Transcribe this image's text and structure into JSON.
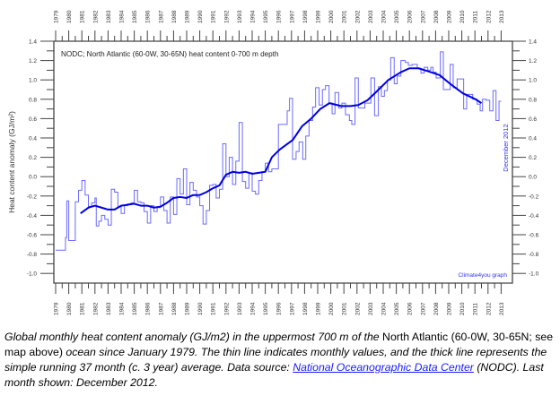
{
  "chart_data": {
    "type": "line",
    "title": "NODC; North Atlantic (60-0W, 30-65N) heat content 0-700 m depth",
    "ylabel": "Heat content anomaly (GJ/m²)",
    "xlabel": "",
    "xlim": [
      1979,
      2013.3
    ],
    "ylim": [
      -1.1,
      1.4
    ],
    "yticks": [
      1.4,
      1.2,
      1.0,
      0.8,
      0.6,
      0.4,
      0.2,
      0.0,
      -0.2,
      -0.4,
      -0.6,
      -0.8,
      -1.0
    ],
    "ytick_labels": [
      "1.4",
      "1.2",
      "1.0",
      "0.8",
      "0.6",
      "0.4",
      "0.2",
      "0.0",
      "-0.2",
      "-0.4",
      "-0.6",
      "-0.8",
      "-1.0"
    ],
    "xticks": [
      "1979",
      "1980",
      "1981",
      "1982",
      "1983",
      "1984",
      "1985",
      "1986",
      "1987",
      "1988",
      "1989",
      "1990",
      "1991",
      "1992",
      "1993",
      "1994",
      "1995",
      "1996",
      "1997",
      "1998",
      "1999",
      "2000",
      "2001",
      "2002",
      "2003",
      "2004",
      "2005",
      "2006",
      "2007",
      "2008",
      "2009",
      "2010",
      "2011",
      "2012",
      "2013"
    ],
    "last_month_label": "December 2012",
    "credit": "Climate4you graph",
    "colors": {
      "monthly": "#6a6aff",
      "running_mean": "#0000e0",
      "axis": "#444444",
      "label": "#3333ff"
    },
    "series": [
      {
        "name": "Monthly values",
        "style": "thin-step",
        "x": [
          1979.0,
          1979.75,
          1979.85,
          1980.0,
          1980.5,
          1980.75,
          1981.0,
          1981.25,
          1981.5,
          1981.75,
          1982.0,
          1982.1,
          1982.3,
          1982.5,
          1982.75,
          1983.0,
          1983.25,
          1983.5,
          1983.75,
          1984.0,
          1984.25,
          1984.5,
          1984.75,
          1985.0,
          1985.25,
          1985.5,
          1985.75,
          1986.0,
          1986.25,
          1986.5,
          1986.75,
          1987.0,
          1987.25,
          1987.5,
          1987.75,
          1988.0,
          1988.25,
          1988.5,
          1988.75,
          1989.0,
          1989.25,
          1989.5,
          1989.75,
          1990.0,
          1990.25,
          1990.5,
          1990.75,
          1991.0,
          1991.25,
          1991.5,
          1991.75,
          1992.0,
          1992.25,
          1992.5,
          1992.75,
          1993.0,
          1993.25,
          1993.5,
          1993.75,
          1994.0,
          1994.25,
          1994.5,
          1994.75,
          1995.0,
          1995.25,
          1995.5,
          1996.0,
          1996.67,
          1996.85,
          1997.08,
          1997.35,
          1997.58,
          1997.86,
          1998.09,
          1998.34,
          1998.61,
          1998.84,
          1999.11,
          1999.36,
          1999.59,
          1999.87,
          2000.1,
          2000.32,
          2000.6,
          2000.85,
          2001.12,
          2001.42,
          2001.6,
          2001.85,
          2002.1,
          2002.6,
          2003.06,
          2003.34,
          2003.63,
          2003.86,
          2004.09,
          2004.32,
          2004.57,
          2004.84,
          2005.07,
          2005.35,
          2005.69,
          2005.92,
          2006.21,
          2006.6,
          2006.88,
          2007.13,
          2007.4,
          2007.63,
          2007.81,
          2008.04,
          2008.36,
          2008.59,
          2008.89,
          2009.11,
          2009.34,
          2009.64,
          2009.91,
          2010.14,
          2010.37,
          2010.83,
          2011.17,
          2011.4,
          2011.58,
          2011.85,
          2012.13,
          2012.38,
          2012.61,
          2012.84
        ],
        "values": [
          -0.76,
          -0.63,
          -0.25,
          -0.66,
          -0.26,
          -0.14,
          -0.04,
          -0.19,
          -0.31,
          -0.27,
          -0.22,
          -0.51,
          -0.46,
          -0.4,
          -0.44,
          -0.5,
          -0.13,
          -0.16,
          -0.31,
          -0.38,
          -0.3,
          -0.28,
          -0.27,
          -0.14,
          -0.26,
          -0.27,
          -0.36,
          -0.48,
          -0.3,
          -0.36,
          -0.32,
          -0.21,
          -0.35,
          -0.48,
          -0.21,
          -0.39,
          -0.02,
          -0.18,
          0.08,
          -0.29,
          -0.06,
          -0.14,
          -0.21,
          -0.3,
          -0.49,
          -0.35,
          -0.09,
          -0.08,
          -0.22,
          -0.13,
          0.34,
          0.0,
          0.2,
          -0.08,
          0.16,
          0.56,
          -0.05,
          -0.12,
          0.04,
          -0.15,
          -0.18,
          -0.04,
          0.05,
          0.14,
          0.05,
          0.08,
          0.54,
          0.68,
          0.81,
          0.18,
          0.26,
          0.36,
          0.18,
          0.42,
          0.58,
          0.72,
          0.92,
          0.74,
          0.9,
          0.94,
          0.76,
          0.65,
          0.87,
          0.71,
          0.76,
          0.64,
          0.58,
          0.54,
          1.02,
          0.71,
          0.76,
          1.02,
          0.63,
          0.93,
          0.83,
          0.89,
          1.0,
          1.23,
          0.96,
          1.04,
          1.2,
          1.18,
          1.15,
          1.16,
          1.12,
          1.07,
          1.13,
          1.1,
          1.13,
          1.08,
          1.02,
          1.29,
          0.9,
          0.9,
          1.16,
          0.92,
          1.01,
          1.01,
          0.7,
          0.85,
          0.8,
          0.75,
          0.68,
          0.8,
          0.79,
          0.68,
          0.89,
          0.58,
          0.78
        ],
        "end": 2013.0
      },
      {
        "name": "Running 37 month average",
        "style": "thick-line",
        "x": [
          1980.9,
          1981.5,
          1982.0,
          1982.5,
          1983.0,
          1983.5,
          1984.0,
          1985.0,
          1985.5,
          1986.0,
          1986.5,
          1987.0,
          1987.5,
          1988.0,
          1988.5,
          1989.0,
          1989.5,
          1990.0,
          1990.5,
          1991.0,
          1991.5,
          1992.0,
          1992.5,
          1993.0,
          1993.5,
          1994.0,
          1994.5,
          1995.0,
          1995.5,
          1996.1,
          1997.1,
          1997.8,
          1998.5,
          1999.2,
          1999.9,
          2000.8,
          2001.5,
          2002.1,
          2002.8,
          2003.5,
          2004.4,
          2005.35,
          2006.0,
          2006.7,
          2007.4,
          2008.3,
          2009.2,
          2010.1,
          2011.05,
          2011.5
        ],
        "values": [
          -0.38,
          -0.32,
          -0.3,
          -0.32,
          -0.34,
          -0.34,
          -0.3,
          -0.28,
          -0.3,
          -0.3,
          -0.32,
          -0.31,
          -0.27,
          -0.22,
          -0.21,
          -0.22,
          -0.19,
          -0.19,
          -0.16,
          -0.12,
          -0.09,
          0.02,
          0.05,
          0.04,
          0.05,
          0.03,
          0.04,
          0.05,
          0.2,
          0.28,
          0.38,
          0.52,
          0.6,
          0.7,
          0.76,
          0.73,
          0.73,
          0.74,
          0.79,
          0.88,
          1.0,
          1.08,
          1.12,
          1.12,
          1.09,
          1.05,
          0.95,
          0.86,
          0.8,
          0.76
        ]
      }
    ]
  },
  "caption": {
    "part1": "Global monthly heat content anomaly (GJ/m2) in the uppermost 700 m of the",
    "part2": " North Atlantic (60-0W, 30-65N; see map above)",
    "part3": " ocean since January 1979. The thin line indicates monthly values, and the thick line represents the simple running 37 month (c. 3 year) average. Data source: ",
    "link": "National Oceanographic Data Center",
    "part4": " (NODC). Last month shown: December 2012."
  }
}
